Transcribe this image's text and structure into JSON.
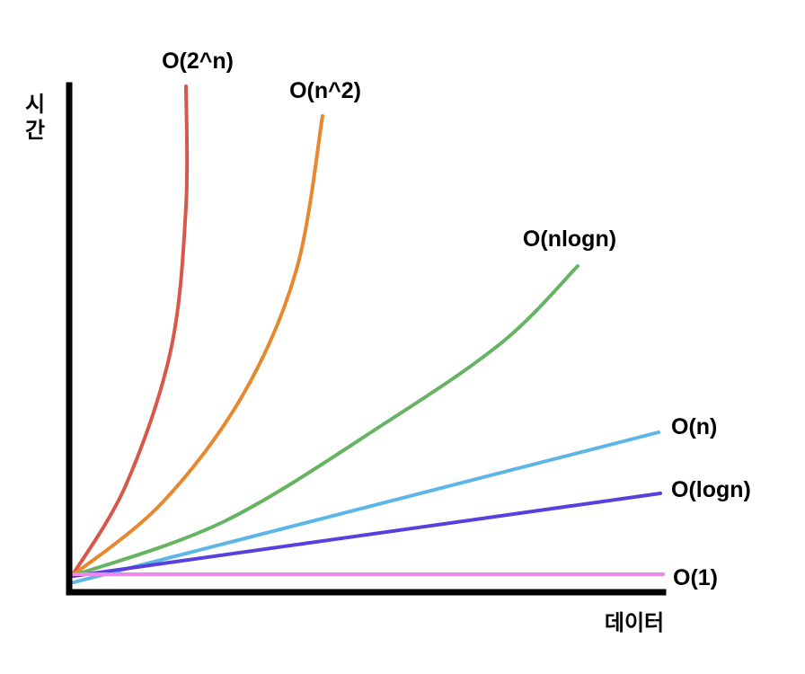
{
  "chart_data": {
    "type": "line",
    "xlabel": "데이터",
    "ylabel_chars": [
      "시",
      "간"
    ],
    "grid": false,
    "legend": "labels at line ends",
    "series": [
      {
        "name": "O(2^n)",
        "kind": "exp",
        "color": "#d9574a"
      },
      {
        "name": "O(n^2)",
        "kind": "quad",
        "color": "#e8882e"
      },
      {
        "name": "O(nlogn)",
        "kind": "nlogn",
        "color": "#66b362"
      },
      {
        "name": "O(n)",
        "kind": "lin",
        "color": "#5cb6e8"
      },
      {
        "name": "O(logn)",
        "kind": "log",
        "color": "#5a3fdf"
      },
      {
        "name": "O(1)",
        "kind": "const",
        "color": "#ee88ee"
      }
    ]
  }
}
